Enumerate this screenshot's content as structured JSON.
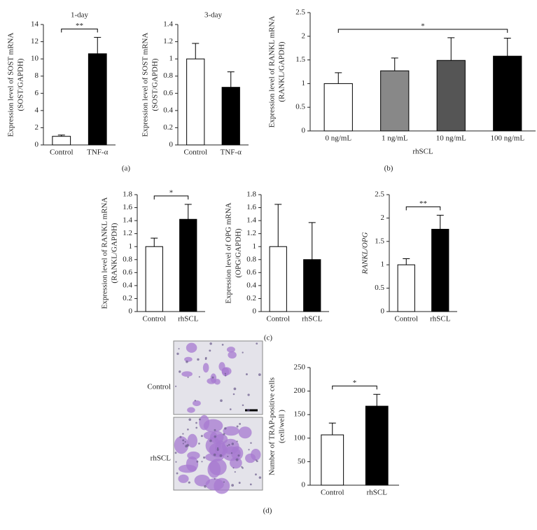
{
  "chart_data": [
    {
      "type": "bar",
      "title": "1-day",
      "ylabel": [
        "Expression level of SOST mRNA",
        "(SOST/GAPDH)"
      ],
      "categories": [
        "Control",
        "TNF-α"
      ],
      "values": [
        1.0,
        10.6
      ],
      "errors": [
        0.15,
        1.9
      ],
      "colors": [
        "#ffffff",
        "#000000"
      ],
      "ylim": [
        0,
        14
      ],
      "yticks": [
        0,
        2,
        4,
        6,
        8,
        10,
        12,
        14
      ],
      "significance": "**"
    },
    {
      "type": "bar",
      "title": "3-day",
      "ylabel": [
        "Expression level of SOST mRNA",
        "(SOST/GAPDH)"
      ],
      "categories": [
        "Control",
        "TNF-α"
      ],
      "values": [
        1.0,
        0.67
      ],
      "errors": [
        0.18,
        0.18
      ],
      "colors": [
        "#ffffff",
        "#000000"
      ],
      "ylim": [
        0,
        1.4
      ],
      "yticks": [
        0,
        0.2,
        0.4,
        0.6,
        0.8,
        1,
        1.2,
        1.4
      ]
    },
    {
      "type": "bar",
      "ylabel": [
        "Expression level of RANKL mRNA",
        "(RANKL/GAPDH)"
      ],
      "xlabel": "rhSCL",
      "categories": [
        "0 ng/mL",
        "1 ng/mL",
        "10 ng/mL",
        "100 ng/mL"
      ],
      "values": [
        1.0,
        1.27,
        1.49,
        1.58
      ],
      "errors": [
        0.23,
        0.27,
        0.48,
        0.38
      ],
      "colors": [
        "#ffffff",
        "#888888",
        "#555555",
        "#000000"
      ],
      "ylim": [
        0,
        2.5
      ],
      "yticks": [
        0,
        0.5,
        1,
        1.5,
        2,
        2.5
      ],
      "significance": "*"
    },
    {
      "type": "bar",
      "ylabel": [
        "Expression level of RANKL mRNA",
        "(RANKL/GAPDH)"
      ],
      "categories": [
        "Control",
        "rhSCL"
      ],
      "values": [
        1.0,
        1.42
      ],
      "errors": [
        0.13,
        0.23
      ],
      "colors": [
        "#ffffff",
        "#000000"
      ],
      "ylim": [
        0,
        1.8
      ],
      "yticks": [
        0,
        0.2,
        0.4,
        0.6,
        0.8,
        1,
        1.2,
        1.4,
        1.6,
        1.8
      ],
      "significance": "*"
    },
    {
      "type": "bar",
      "ylabel": [
        "Expression level of OPG mRNA",
        "(OPG/GAPDH)"
      ],
      "categories": [
        "Control",
        "rhSCL"
      ],
      "values": [
        1.0,
        0.8
      ],
      "errors": [
        0.65,
        0.57
      ],
      "colors": [
        "#ffffff",
        "#000000"
      ],
      "ylim": [
        0,
        1.8
      ],
      "yticks": [
        0,
        0.2,
        0.4,
        0.6,
        0.8,
        1,
        1.2,
        1.4,
        1.6,
        1.8
      ]
    },
    {
      "type": "bar",
      "ylabel": [
        "RANKL/OPG"
      ],
      "categories": [
        "Control",
        "rhSCL"
      ],
      "values": [
        1.0,
        1.76
      ],
      "errors": [
        0.13,
        0.3
      ],
      "colors": [
        "#ffffff",
        "#000000"
      ],
      "ylim": [
        0,
        2.5
      ],
      "yticks": [
        0,
        0.5,
        1,
        1.5,
        2,
        2.5
      ],
      "significance": "**"
    },
    {
      "type": "bar",
      "ylabel": [
        "Number of TRAP-positive cells",
        "(cell/well )"
      ],
      "categories": [
        "Control",
        "rhSCL"
      ],
      "values": [
        107,
        168
      ],
      "errors": [
        25,
        25
      ],
      "colors": [
        "#ffffff",
        "#000000"
      ],
      "ylim": [
        0,
        250
      ],
      "yticks": [
        0,
        50,
        100,
        150,
        200,
        250
      ],
      "significance": "*"
    }
  ],
  "panel_labels": [
    "(a)",
    "(b)",
    "(c)",
    "(d)"
  ],
  "micrograph_labels": [
    "Control",
    "rhSCL"
  ]
}
